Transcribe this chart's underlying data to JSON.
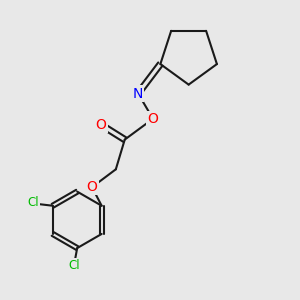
{
  "background_color": "#e8e8e8",
  "bond_color": "#1a1a1a",
  "bond_width": 1.5,
  "atom_colors": {
    "O": "#ff0000",
    "N": "#0000ff",
    "Cl": "#00bb00",
    "C": "#1a1a1a"
  },
  "figsize": [
    3.0,
    3.0
  ],
  "dpi": 100,
  "xlim": [
    0,
    10
  ],
  "ylim": [
    0,
    10
  ]
}
